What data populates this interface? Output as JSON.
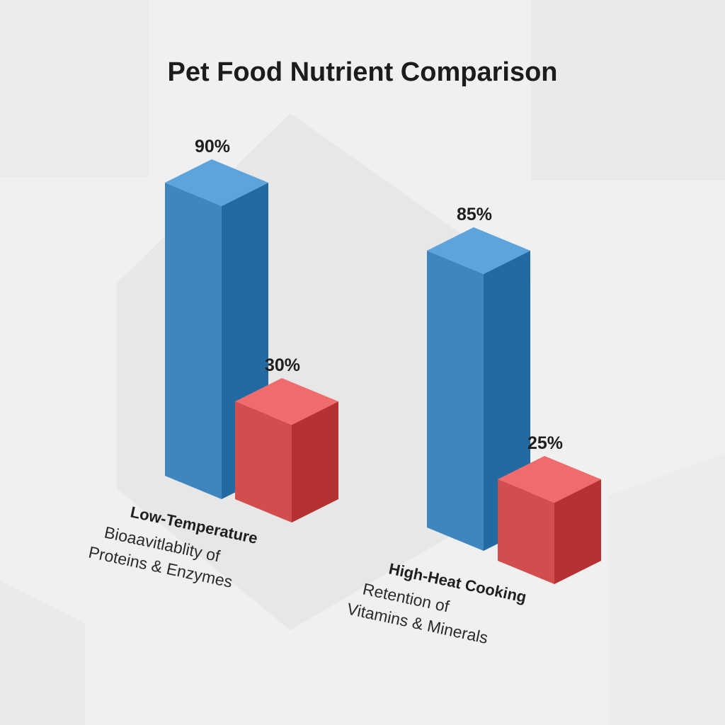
{
  "chart_data": {
    "type": "bar",
    "title": "Pet Food Nutrient Comparison",
    "categories": [
      {
        "label": "Low-Temperature",
        "sublabel_line1": "Bioaavitlablity of",
        "sublabel_line2": "Proteins & Enzymes"
      },
      {
        "label": "High-Heat Cooking",
        "sublabel_line1": "Retention of",
        "sublabel_line2": "Vitamins & Minerals"
      }
    ],
    "series": [
      {
        "values": [
          90,
          85
        ],
        "value_labels": [
          "90%",
          "85%"
        ],
        "color": "#3f86bf"
      },
      {
        "values": [
          30,
          25
        ],
        "value_labels": [
          "30%",
          "25%"
        ],
        "color": "#d24d4d"
      }
    ],
    "unit": "%",
    "ylim": [
      0,
      100
    ],
    "grid": false,
    "legend": "none",
    "style": "3d-isometric"
  }
}
